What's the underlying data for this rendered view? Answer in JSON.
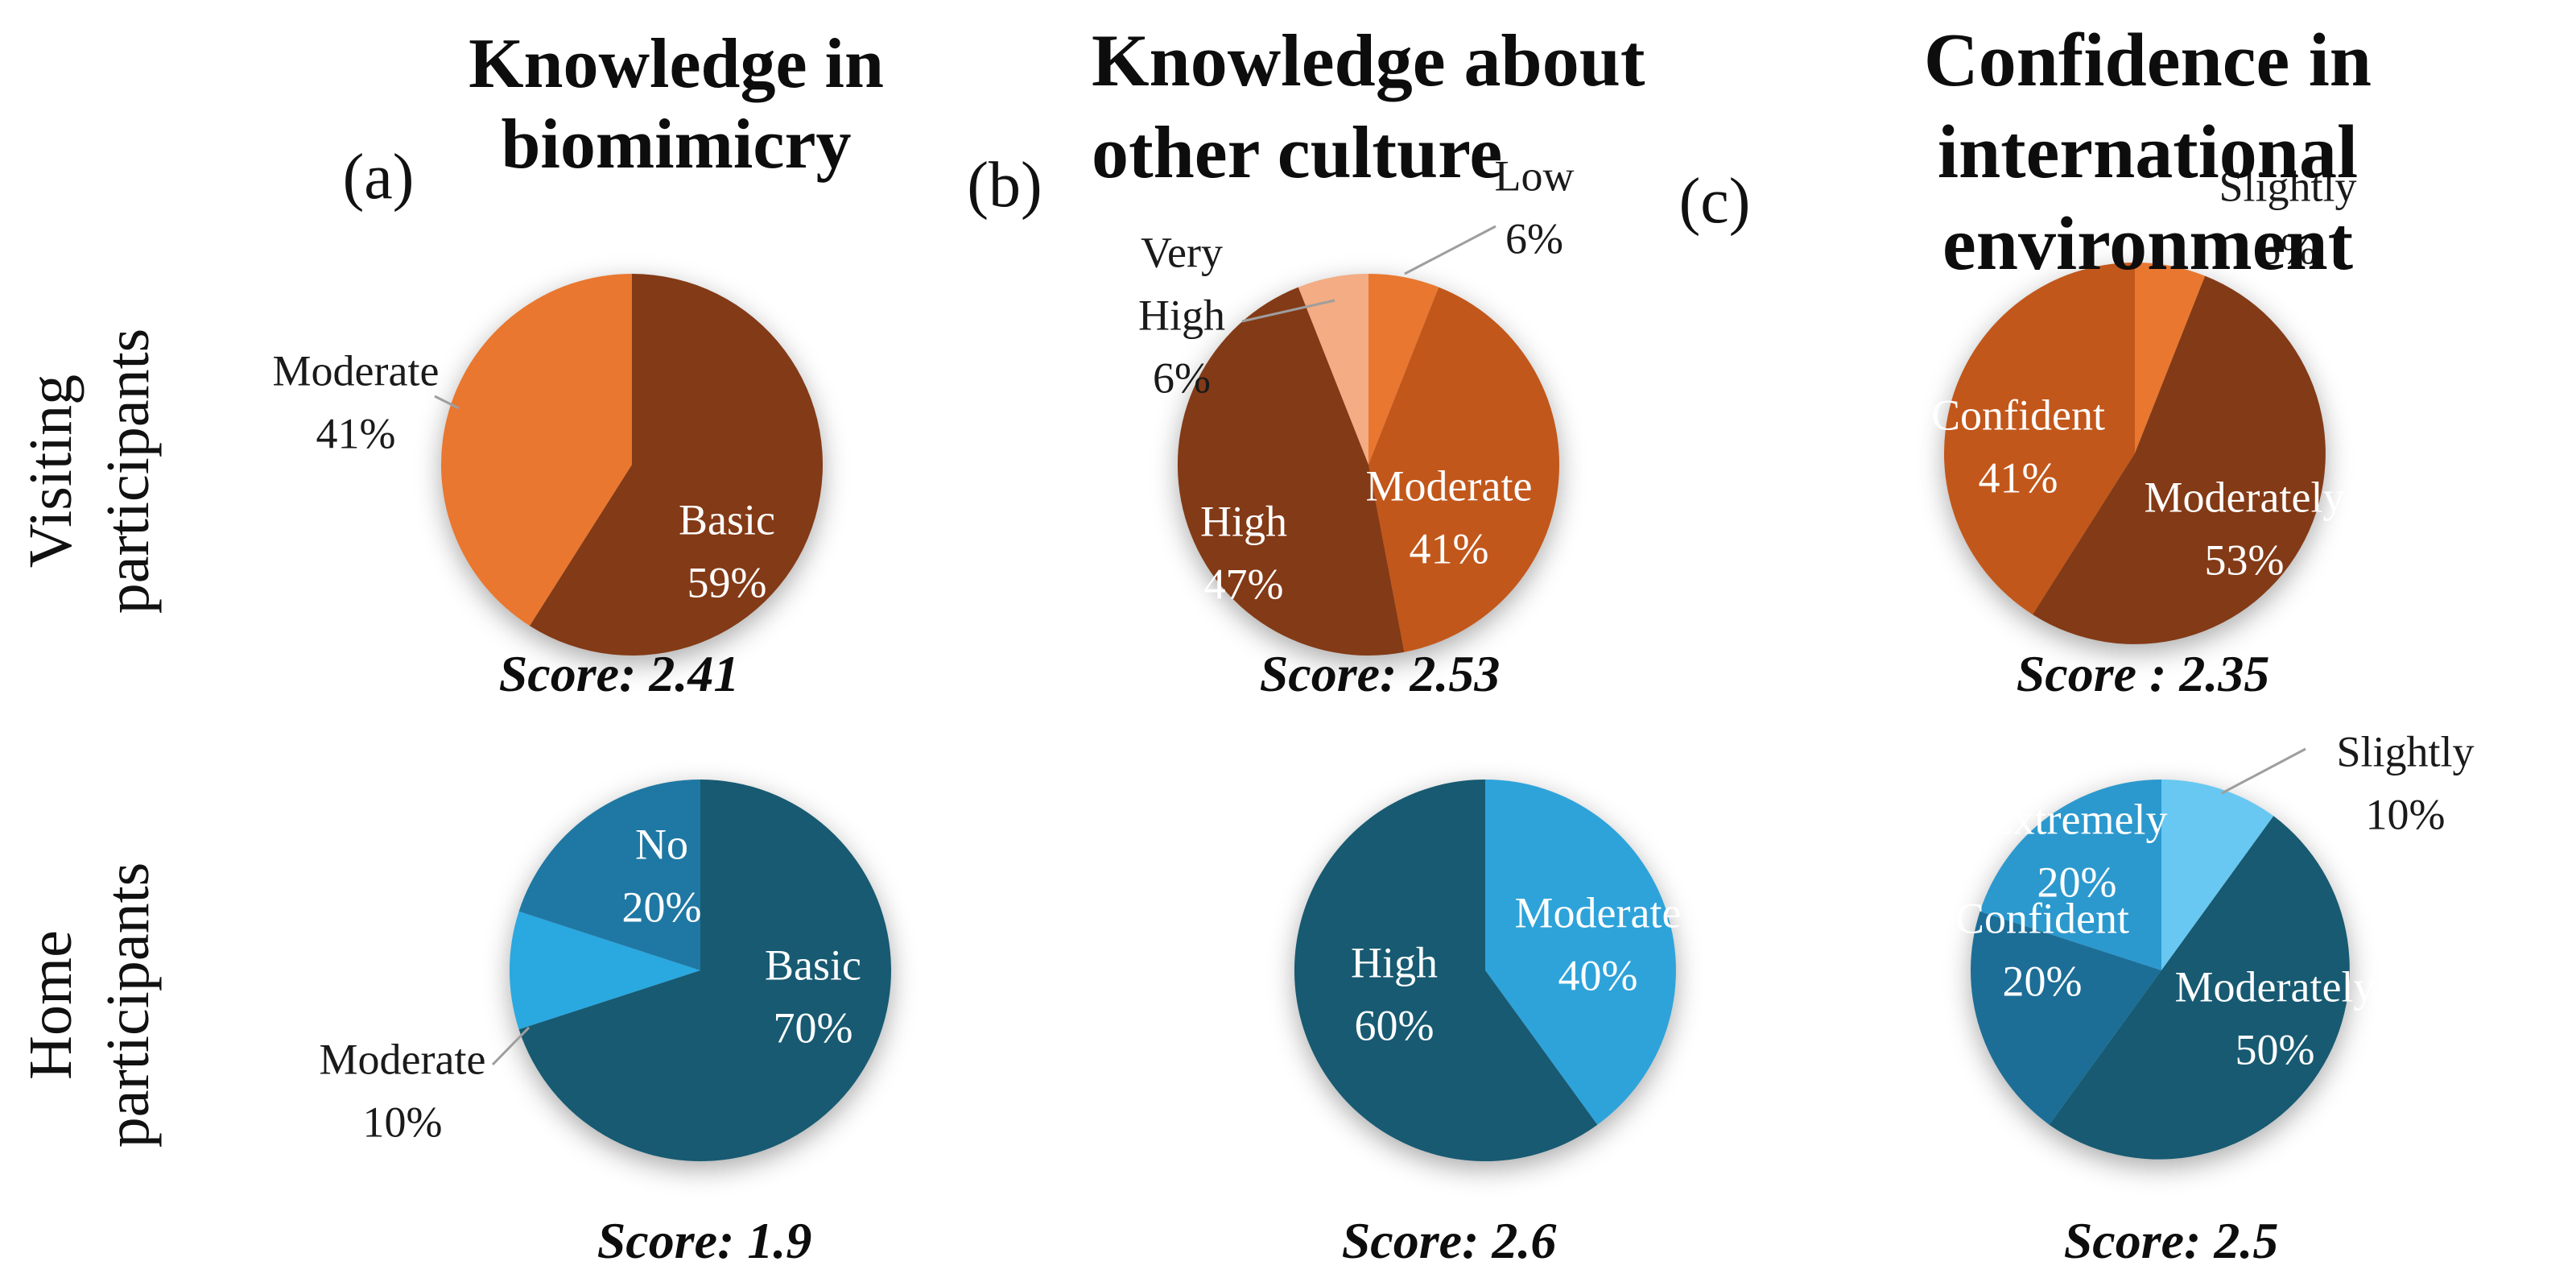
{
  "figure": {
    "background": "#ffffff",
    "row_labels": [
      {
        "lines": [
          "Visiting",
          "participants"
        ]
      },
      {
        "lines": [
          "Home",
          "participants"
        ]
      }
    ],
    "column_headers": [
      {
        "letter": "(a)",
        "title_lines": [
          "Knowledge in",
          "biomimicry"
        ]
      },
      {
        "letter": "(b)",
        "title_lines": [
          "Knowledge about",
          "other culture"
        ]
      },
      {
        "letter": "(c)",
        "title_lines": [
          "Confidence in international",
          "environment"
        ]
      }
    ]
  },
  "palette": {
    "orange_bright": "#E9772F",
    "orange_pale": "#F3AC83",
    "orange_rust": "#C2571B",
    "brown_dark": "#833A16",
    "teal_dark": "#175A72",
    "blue_medium": "#1F78A3",
    "blue_bright": "#2AA8E0",
    "blue_sky": "#68C8F1",
    "blue_strong": "#2C99CE",
    "blue_confident": "#1D6E96",
    "leader_line": "#9E9E9E",
    "text_dark": "#1A1A1A",
    "text_light": "#FFFFFF"
  },
  "chart_data": [
    {
      "type": "pie",
      "panel": "(a)",
      "group": "Visiting participants",
      "measure": "Knowledge in biomimicry",
      "score_label": "Score: 2.41",
      "score": 2.41,
      "center": [
        785,
        577
      ],
      "radius": 237,
      "start_angle_deg": 0,
      "direction": "clockwise",
      "slices": [
        {
          "label": "Basic",
          "pct": 59,
          "color": "#833A16",
          "placement": "inside",
          "label_lines": [
            "Basic",
            "59%"
          ],
          "label_xy": [
            903,
            690
          ]
        },
        {
          "label": "Moderate",
          "pct": 41,
          "color": "#E9772F",
          "placement": "outside",
          "label_lines": [
            "Moderate",
            "41%"
          ],
          "label_xy": [
            442,
            505
          ],
          "leader": [
            [
              540,
              492
            ],
            [
              570,
              507
            ]
          ]
        }
      ]
    },
    {
      "type": "pie",
      "panel": "(b)",
      "group": "Visiting participants",
      "measure": "Knowledge about other culture",
      "score_label": "Score: 2.53",
      "score": 2.53,
      "center": [
        1700,
        577
      ],
      "radius": 237,
      "start_angle_deg": 0,
      "direction": "clockwise",
      "slices": [
        {
          "label": "Low",
          "pct": 6,
          "color": "#E9772F",
          "placement": "outside",
          "label_lines": [
            "Low",
            "6%"
          ],
          "label_xy": [
            1906,
            263
          ],
          "leader": [
            [
              1745,
              340
            ],
            [
              1858,
              281
            ]
          ]
        },
        {
          "label": "Moderate",
          "pct": 41,
          "color": "#C2571B",
          "placement": "inside",
          "label_lines": [
            "Moderate",
            "41%"
          ],
          "label_xy": [
            1800,
            648
          ]
        },
        {
          "label": "High",
          "pct": 47,
          "color": "#833A16",
          "placement": "inside",
          "label_lines": [
            "High",
            "47%"
          ],
          "label_xy": [
            1545,
            692
          ]
        },
        {
          "label": "Very High",
          "pct": 6,
          "color": "#F3AC83",
          "placement": "outside",
          "label_lines": [
            "Very",
            "High",
            "6%"
          ],
          "label_xy": [
            1468,
            397
          ],
          "leader": [
            [
              1543,
              399
            ],
            [
              1658,
              373
            ]
          ]
        }
      ]
    },
    {
      "type": "pie",
      "panel": "(c)",
      "group": "Visiting participants",
      "measure": "Confidence in international environment",
      "score_label": "Score : 2.35",
      "score": 2.35,
      "center": [
        2652,
        563
      ],
      "radius": 237,
      "start_angle_deg": 0,
      "direction": "clockwise",
      "slices": [
        {
          "label": "Slightly",
          "pct": 6,
          "color": "#E9772F",
          "placement": "outside",
          "label_lines": [
            "Slightly",
            "6%"
          ],
          "label_xy": [
            2842,
            276
          ]
        },
        {
          "label": "Moderately",
          "pct": 53,
          "color": "#833A16",
          "placement": "inside",
          "label_lines": [
            "Moderately",
            "53%"
          ],
          "label_xy": [
            2788,
            662
          ]
        },
        {
          "label": "Confident",
          "pct": 41,
          "color": "#C2571B",
          "placement": "inside",
          "label_lines": [
            "Confident",
            "41%"
          ],
          "label_xy": [
            2507,
            560
          ]
        }
      ]
    },
    {
      "type": "pie",
      "panel": "(a)",
      "group": "Home participants",
      "measure": "Knowledge in biomimicry",
      "score_label": "Score: 1.9",
      "score": 1.9,
      "center": [
        870,
        1205
      ],
      "radius": 237,
      "start_angle_deg": 0,
      "direction": "clockwise",
      "slices": [
        {
          "label": "Basic",
          "pct": 70,
          "color": "#175A72",
          "placement": "inside",
          "label_lines": [
            "Basic",
            "70%"
          ],
          "label_xy": [
            1010,
            1243
          ]
        },
        {
          "label": "Moderate",
          "pct": 10,
          "color": "#2AA8E0",
          "placement": "outside",
          "label_lines": [
            "Moderate",
            "10%"
          ],
          "label_xy": [
            500,
            1360
          ],
          "leader": [
            [
              612,
              1322
            ],
            [
              657,
              1276
            ]
          ]
        },
        {
          "label": "No",
          "pct": 20,
          "color": "#1F78A3",
          "placement": "inside",
          "label_lines": [
            "No",
            "20%"
          ],
          "label_xy": [
            822,
            1093
          ]
        }
      ]
    },
    {
      "type": "pie",
      "panel": "(b)",
      "group": "Home participants",
      "measure": "Knowledge about other culture",
      "score_label": "Score: 2.6",
      "score": 2.6,
      "center": [
        1845,
        1205
      ],
      "radius": 237,
      "start_angle_deg": 0,
      "direction": "clockwise",
      "slices": [
        {
          "label": "Moderate",
          "pct": 40,
          "color": "#2EA3DA",
          "placement": "inside",
          "label_lines": [
            "Moderate",
            "40%"
          ],
          "label_xy": [
            1985,
            1178
          ]
        },
        {
          "label": "High",
          "pct": 60,
          "color": "#175A72",
          "placement": "inside",
          "label_lines": [
            "High",
            "60%"
          ],
          "label_xy": [
            1732,
            1240
          ]
        }
      ]
    },
    {
      "type": "pie",
      "panel": "(c)",
      "group": "Home participants",
      "measure": "Confidence in international environment",
      "score_label": "Score: 2.5",
      "score": 2.5,
      "center": [
        2685,
        1205
      ],
      "radius": 237,
      "start_angle_deg": 0,
      "direction": "clockwise",
      "slices": [
        {
          "label": "Slightly",
          "pct": 10,
          "color": "#68C8F1",
          "placement": "outside",
          "label_lines": [
            "Slightly",
            "10%"
          ],
          "label_xy": [
            2988,
            978
          ],
          "leader": [
            [
              2760,
              985
            ],
            [
              2864,
              930
            ]
          ]
        },
        {
          "label": "Moderately",
          "pct": 50,
          "color": "#175A72",
          "placement": "inside",
          "label_lines": [
            "Moderately",
            "50%"
          ],
          "label_xy": [
            2826,
            1270
          ]
        },
        {
          "label": "Confident",
          "pct": 20,
          "color": "#1D6E96",
          "placement": "inside",
          "label_lines": [
            "Confident",
            "20%"
          ],
          "label_xy": [
            2537,
            1185
          ]
        },
        {
          "label": "Extremely",
          "pct": 20,
          "color": "#2C99CE",
          "placement": "inside",
          "label_lines": [
            "Extremely",
            "20%"
          ],
          "label_xy": [
            2580,
            1062
          ]
        }
      ]
    }
  ]
}
